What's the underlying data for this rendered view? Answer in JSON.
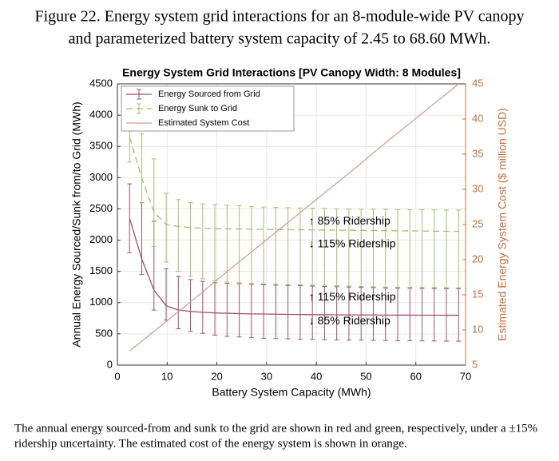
{
  "figure": {
    "caption_top": [
      "Figure 22. Energy system grid interactions for an 8-module-wide PV canopy",
      "and parameterized battery system capacity of 2.45 to 68.60 MWh."
    ],
    "caption_bottom": [
      "The annual energy sourced-from and sunk to the grid are shown in red and green, respectively, under a ±15%",
      "ridership uncertainty. The estimated cost of the energy system is shown in orange."
    ]
  },
  "chart_data": {
    "type": "line",
    "title": "Energy System Grid Interactions [PV Canopy Width: 8 Modules]",
    "xlabel": "Battery System Capacity (MWh)",
    "ylabel": "Annual Energy Sourced/Sunk from/to Grid (MWh)",
    "y2label": "Estimated Energy System Cost ($ million USD)",
    "x": [
      2.45,
      4.9,
      7.35,
      9.8,
      12.25,
      14.7,
      17.15,
      19.6,
      22.05,
      24.5,
      26.95,
      29.4,
      31.85,
      34.3,
      36.75,
      39.2,
      41.65,
      44.1,
      46.55,
      49,
      51.45,
      53.9,
      56.35,
      58.8,
      61.25,
      63.7,
      66.15,
      68.6
    ],
    "series": [
      {
        "name": "Energy Sourced from Grid",
        "color": "#a0506e",
        "linestyle": "solid",
        "values": [
          2350,
          1700,
          1200,
          950,
          880,
          860,
          845,
          835,
          830,
          825,
          820,
          818,
          815,
          812,
          810,
          808,
          806,
          805,
          804,
          803,
          802,
          801,
          800,
          800,
          799,
          799,
          798,
          798
        ],
        "lower": [
          1800,
          1450,
          880,
          720,
          580,
          540,
          510,
          480,
          460,
          450,
          440,
          430,
          425,
          420,
          415,
          410,
          405,
          402,
          400,
          398,
          396,
          394,
          392,
          390,
          388,
          386,
          384,
          382
        ],
        "upper": [
          2900,
          2600,
          2300,
          1540,
          1420,
          1370,
          1340,
          1320,
          1310,
          1300,
          1290,
          1285,
          1280,
          1275,
          1270,
          1265,
          1260,
          1255,
          1250,
          1245,
          1240,
          1235,
          1232,
          1230,
          1228,
          1226,
          1224,
          1222
        ]
      },
      {
        "name": "Energy Sunk to Grid",
        "color": "#a8bd6e",
        "linestyle": "dashed",
        "values": [
          3650,
          3000,
          2450,
          2250,
          2220,
          2200,
          2190,
          2185,
          2180,
          2178,
          2175,
          2172,
          2170,
          2168,
          2166,
          2164,
          2162,
          2160,
          2158,
          2156,
          2154,
          2152,
          2150,
          2148,
          2146,
          2144,
          2142,
          2140
        ],
        "lower": [
          3250,
          2600,
          1900,
          1650,
          1500,
          1420,
          1380,
          1350,
          1330,
          1320,
          1310,
          1300,
          1295,
          1290,
          1285,
          1280,
          1275,
          1270,
          1265,
          1260,
          1255,
          1250,
          1248,
          1246,
          1244,
          1242,
          1240,
          1238
        ],
        "upper": [
          4070,
          3700,
          3300,
          2750,
          2650,
          2600,
          2580,
          2570,
          2560,
          2550,
          2540,
          2530,
          2525,
          2520,
          2515,
          2510,
          2505,
          2500,
          2498,
          2496,
          2494,
          2492,
          2490,
          2488,
          2486,
          2484,
          2482,
          2480
        ]
      },
      {
        "name": "Estimated System Cost",
        "color": "#d4a090",
        "linestyle": "solid",
        "axis": "y2",
        "values": [
          7.0,
          8.4,
          9.8,
          11.2,
          12.6,
          14.0,
          15.4,
          16.9,
          18.3,
          19.7,
          21.1,
          22.5,
          23.9,
          25.3,
          26.7,
          28.1,
          29.5,
          30.9,
          32.3,
          33.7,
          35.2,
          36.6,
          38.0,
          39.4,
          40.8,
          42.2,
          43.6,
          45.0
        ]
      }
    ],
    "annotations": [
      "↑ 85% Ridership",
      "↓ 115% Ridership",
      "↑ 115% Ridership",
      "↓ 85% Ridership"
    ],
    "xlim": [
      0,
      70
    ],
    "xticks": [
      0,
      10,
      20,
      30,
      40,
      50,
      60,
      70
    ],
    "ylim": [
      0,
      4500
    ],
    "yticks": [
      0,
      500,
      1000,
      1500,
      2000,
      2500,
      3000,
      3500,
      4000,
      4500
    ],
    "y2lim": [
      5,
      45
    ],
    "y2ticks": [
      5,
      10,
      15,
      20,
      25,
      30,
      35,
      40,
      45
    ],
    "y2color": "#c0703a",
    "grid": true,
    "legend": "northwest"
  }
}
